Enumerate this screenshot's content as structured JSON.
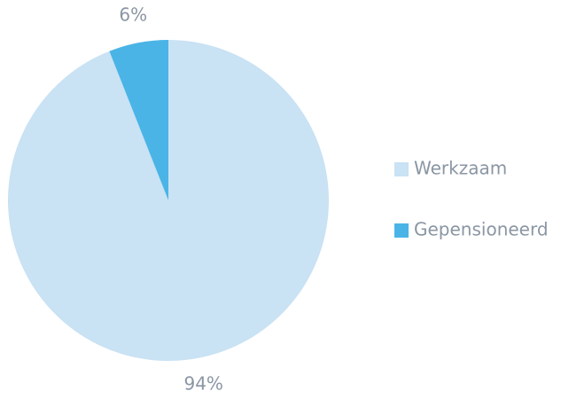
{
  "chart_data": {
    "type": "pie",
    "categories": [
      "Werkzaam",
      "Gepensioneerd"
    ],
    "values": [
      94,
      6
    ],
    "value_labels": [
      "94%",
      "6%"
    ],
    "colors": [
      "#c9e2f4",
      "#4ab4e6"
    ],
    "legend": "right"
  }
}
